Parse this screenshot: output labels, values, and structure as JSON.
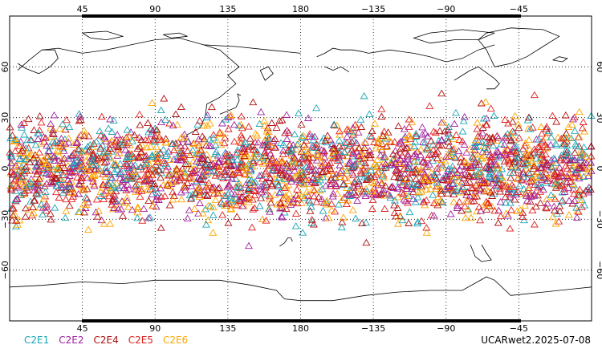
{
  "map": {
    "projection": "cylindrical-equidistant",
    "lon_range": [
      0,
      360
    ],
    "lat_range": [
      -90,
      90
    ],
    "gridlines": true,
    "lon_ticks": [
      "45",
      "90",
      "135",
      "180",
      "−135",
      "−90",
      "−45"
    ],
    "lat_ticks": [
      "60",
      "30",
      "0",
      "−30",
      "−60"
    ]
  },
  "legend": [
    {
      "label": "C2E1",
      "color": "#1aa6b7"
    },
    {
      "label": "C2E2",
      "color": "#a020a0"
    },
    {
      "label": "C2E4",
      "color": "#b01010"
    },
    {
      "label": "C2E5",
      "color": "#e02020"
    },
    {
      "label": "C2E6",
      "color": "#ffa500"
    }
  ],
  "footer": "UCARwet2.2025-07-08",
  "chart_data": {
    "type": "scatter",
    "marker": "open-triangle",
    "xlabel": "",
    "ylabel": "",
    "xlim": [
      0,
      360
    ],
    "ylim": [
      -90,
      90
    ],
    "series": [
      {
        "name": "C2E1",
        "color": "#1aa6b7"
      },
      {
        "name": "C2E2",
        "color": "#a020a0"
      },
      {
        "name": "C2E4",
        "color": "#b01010"
      },
      {
        "name": "C2E5",
        "color": "#e02020"
      },
      {
        "name": "C2E6",
        "color": "#ffa500"
      }
    ]
  }
}
